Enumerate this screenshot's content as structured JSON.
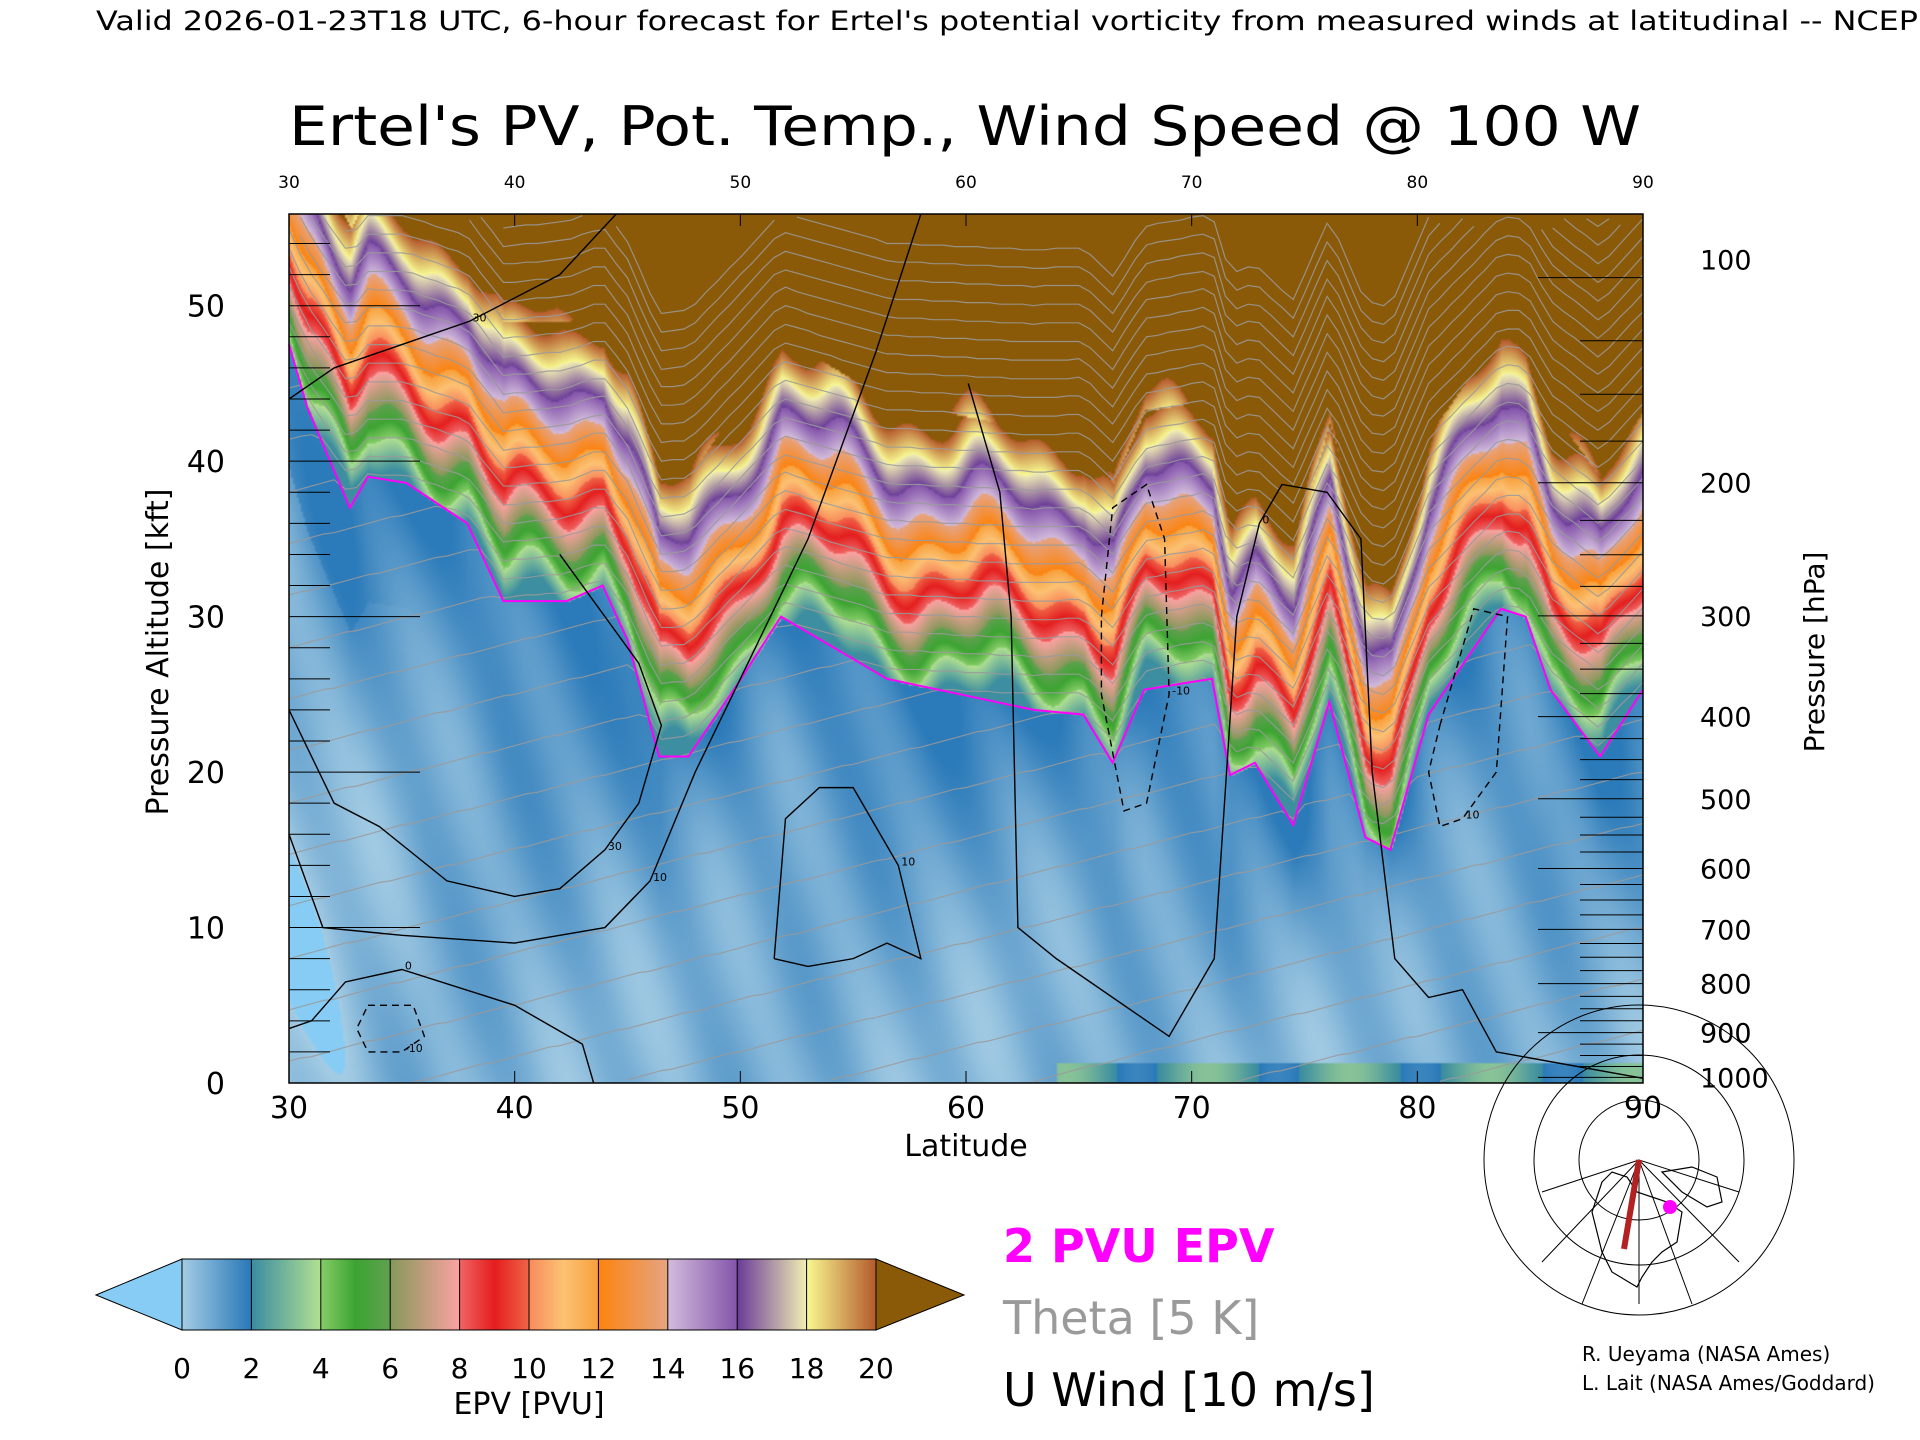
{
  "header": {
    "text": "Valid 2026-01-23T18 UTC, 6-hour forecast for Ertel's potential vorticity from measured winds at latitudinal -- NCEP"
  },
  "chart_data": {
    "type": "heatmap",
    "title": "Ertel's PV, Pot. Temp., Wind Speed @ 100 W",
    "xlabel": "Latitude",
    "ylabel": "Pressure Altitude [kft]",
    "y2label": "Pressure [hPa]",
    "xlim": [
      30,
      90
    ],
    "ylim": [
      0,
      55.9
    ],
    "x_ticks": [
      "30",
      "40",
      "50",
      "60",
      "70",
      "80",
      "90"
    ],
    "y_ticks": [
      "0",
      "10",
      "20",
      "30",
      "40",
      "50"
    ],
    "pressure_ticks": [
      "100",
      "200",
      "300",
      "400",
      "500",
      "600",
      "700",
      "800",
      "900",
      "1000"
    ],
    "tropopause_2pvu": {
      "lat": [
        30,
        30.8,
        32.7,
        33.5,
        35.2,
        37.9,
        39.5,
        42.3,
        43.9,
        45,
        46.4,
        47.7,
        49.9,
        51.8,
        56.5,
        63,
        65.2,
        66.5,
        67.9,
        70.9,
        71.7,
        72.8,
        74.5,
        76.1,
        77.7,
        78.8,
        80.5,
        83.7,
        84.8,
        85.9,
        88.1,
        90
      ],
      "kft": [
        47.5,
        43.5,
        37,
        39,
        38.6,
        36,
        31,
        31,
        32,
        28.5,
        21,
        21,
        25.7,
        30,
        26,
        24,
        23.7,
        20.6,
        25.3,
        26,
        19.8,
        20.6,
        16.6,
        24.5,
        15.8,
        15,
        23.7,
        30.5,
        30,
        25.3,
        21,
        25.3
      ]
    },
    "wind_contours": [
      {
        "label": "0",
        "dashed": false,
        "lat": [
          60.1,
          61.5,
          62,
          62.3,
          64,
          68,
          69,
          71,
          72,
          73,
          74,
          76,
          77.5,
          78,
          79,
          80.5,
          82,
          83.5,
          90
        ],
        "kft": [
          45,
          38,
          30,
          10,
          8,
          4,
          3,
          8,
          30,
          36,
          38.5,
          38,
          35,
          20,
          8,
          5.5,
          6,
          2,
          0.3
        ]
      },
      {
        "label": "10",
        "dashed": false,
        "lat": [
          30,
          31.5,
          35,
          40,
          44,
          46,
          48,
          50,
          53,
          56,
          58
        ],
        "kft": [
          16,
          10,
          9.5,
          9,
          10,
          13,
          20,
          26,
          35,
          47,
          55.9
        ]
      },
      {
        "label": "30",
        "dashed": false,
        "lat": [
          30,
          32,
          35,
          38,
          42,
          44.5
        ],
        "kft": [
          44,
          46,
          47.5,
          49,
          52,
          55.9
        ]
      },
      {
        "label": "30",
        "dashed": false,
        "lat": [
          30,
          32,
          34,
          37,
          40,
          42,
          44,
          45.5,
          46.5,
          45.5,
          44,
          43,
          42
        ],
        "kft": [
          24,
          18,
          16.5,
          13,
          12,
          12.5,
          15,
          18,
          23,
          27,
          30,
          32,
          34
        ]
      },
      {
        "label": "10",
        "dashed": false,
        "lat": [
          51.5,
          52,
          53.5,
          55,
          56,
          57,
          58,
          56.5,
          55,
          53,
          51.5
        ],
        "kft": [
          8,
          17,
          19,
          19,
          16.5,
          14,
          8,
          9,
          8,
          7.5,
          8
        ]
      },
      {
        "label": "0",
        "dashed": false,
        "lat": [
          30,
          31,
          32.5,
          35,
          40,
          43,
          43.5
        ],
        "kft": [
          3.5,
          4,
          6.5,
          7.3,
          5,
          2.5,
          0
        ]
      },
      {
        "label": "-10",
        "dashed": true,
        "lat": [
          66,
          66.5,
          68,
          68.8,
          69,
          68,
          67,
          66,
          66
        ],
        "kft": [
          30,
          37,
          38.5,
          35,
          25,
          18,
          17.5,
          25,
          30
        ]
      },
      {
        "label": "-10",
        "dashed": true,
        "lat": [
          33.5,
          35.5,
          36,
          35,
          33.5,
          33,
          33.5
        ],
        "kft": [
          5,
          5,
          3,
          2,
          2,
          3.5,
          5
        ]
      },
      {
        "label": "10",
        "dashed": true,
        "lat": [
          81,
          82.5,
          84,
          83.5,
          82,
          81,
          80.5,
          81
        ],
        "kft": [
          23,
          30.5,
          30,
          20,
          17,
          16.5,
          20,
          23
        ]
      }
    ],
    "theta_interval_K": 5,
    "colorbar": {
      "label": "EPV [PVU]",
      "ticks": [
        "0",
        "2",
        "4",
        "6",
        "8",
        "10",
        "12",
        "14",
        "16",
        "18",
        "20"
      ],
      "under_color": "#86ccf5",
      "over_color": "#8b5a08",
      "stops": [
        [
          0,
          "#a4cce4"
        ],
        [
          2,
          "#2878b8"
        ],
        [
          2.01,
          "#3a8ca0"
        ],
        [
          4,
          "#b2e092"
        ],
        [
          4.01,
          "#84cc66"
        ],
        [
          5,
          "#3ca432"
        ],
        [
          6,
          "#60a050"
        ],
        [
          6.01,
          "#86985a"
        ],
        [
          8,
          "#fca2a2"
        ],
        [
          8.01,
          "#f06464"
        ],
        [
          9,
          "#e41e1e"
        ],
        [
          10,
          "#f06448"
        ],
        [
          10.01,
          "#f88c5c"
        ],
        [
          11,
          "#fcc274"
        ],
        [
          12,
          "#f8a03c"
        ],
        [
          12.01,
          "#fc8410"
        ],
        [
          14,
          "#e6a482"
        ],
        [
          14.01,
          "#d2bcdc"
        ],
        [
          16,
          "#8454aa"
        ],
        [
          16.01,
          "#6a3c98"
        ],
        [
          18,
          "#f2eeb4"
        ],
        [
          18.01,
          "#f8f890"
        ],
        [
          20,
          "#b45a2c"
        ]
      ]
    }
  },
  "legend": {
    "pv": "2 PVU EPV",
    "theta": "Theta [5 K]",
    "wind": "U Wind [10 m/s]",
    "pv_color": "#ff00ff",
    "theta_color": "#9a9a9a"
  },
  "credits": [
    "R. Ueyama (NASA Ames)",
    "L. Lait (NASA Ames/Goddard)"
  ]
}
